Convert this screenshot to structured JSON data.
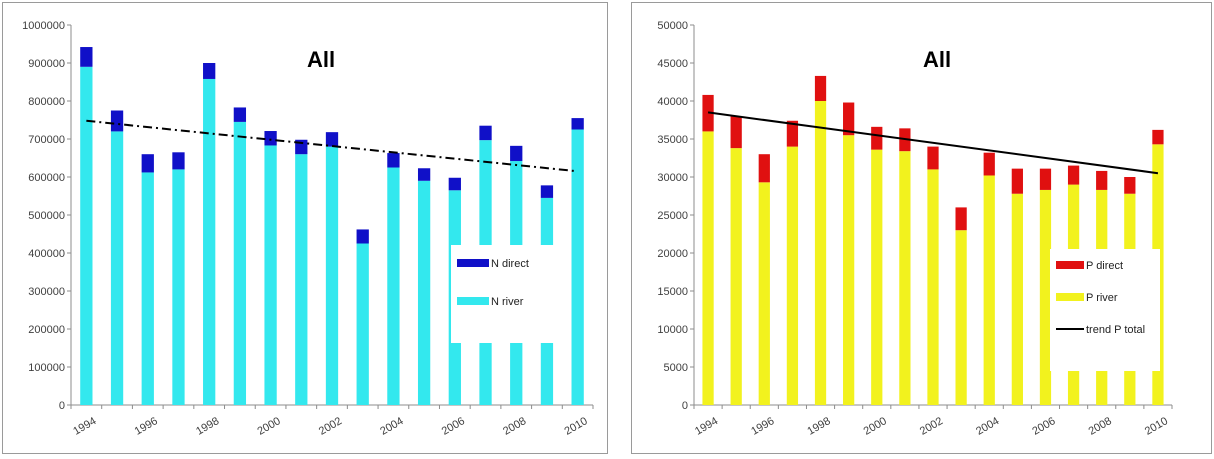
{
  "chart_data": [
    {
      "type": "bar",
      "stacked": true,
      "title": "All",
      "xlabel": "",
      "ylabel": "",
      "categories": [
        "1994",
        "1995",
        "1996",
        "1997",
        "1998",
        "1999",
        "2000",
        "2001",
        "2002",
        "2003",
        "2004",
        "2005",
        "2006",
        "2007",
        "2008",
        "2009",
        "2010"
      ],
      "x_tick_labels": [
        "1994",
        "1996",
        "1998",
        "2000",
        "2002",
        "2004",
        "2006",
        "2008",
        "2010"
      ],
      "ylim": [
        0,
        1000000
      ],
      "y_ticks": [
        "0",
        "100000",
        "200000",
        "300000",
        "400000",
        "500000",
        "600000",
        "700000",
        "800000",
        "900000",
        "1000000"
      ],
      "grid": false,
      "legend_position": "right",
      "series": [
        {
          "name": "N river",
          "color": "#33e8ee",
          "values": [
            890000,
            720000,
            612000,
            620000,
            858000,
            745000,
            683000,
            660000,
            680000,
            425000,
            625000,
            590000,
            565000,
            697000,
            642000,
            545000,
            725000
          ]
        },
        {
          "name": "N direct",
          "color": "#1010c8",
          "values": [
            52000,
            55000,
            48000,
            45000,
            42000,
            38000,
            38000,
            38000,
            38000,
            37000,
            38000,
            33000,
            33000,
            38000,
            40000,
            33000,
            30000
          ]
        }
      ],
      "trend": {
        "name": "",
        "style": "dash-dot",
        "color": "#000000",
        "start": [
          1994,
          748000
        ],
        "end": [
          2010,
          615000
        ]
      }
    },
    {
      "type": "bar",
      "stacked": true,
      "title": "All",
      "xlabel": "",
      "ylabel": "",
      "categories": [
        "1994",
        "1995",
        "1996",
        "1997",
        "1998",
        "1999",
        "2000",
        "2001",
        "2002",
        "2003",
        "2004",
        "2005",
        "2006",
        "2007",
        "2008",
        "2009",
        "2010"
      ],
      "x_tick_labels": [
        "1994",
        "1996",
        "1998",
        "2000",
        "2002",
        "2004",
        "2006",
        "2008",
        "2010"
      ],
      "ylim": [
        0,
        50000
      ],
      "y_ticks": [
        "0",
        "5000",
        "10000",
        "15000",
        "20000",
        "25000",
        "30000",
        "35000",
        "40000",
        "45000",
        "50000"
      ],
      "grid": false,
      "legend_position": "right",
      "series": [
        {
          "name": "P river",
          "color": "#f2f21e",
          "values": [
            36000,
            33800,
            29300,
            34000,
            40000,
            35500,
            33600,
            33400,
            31000,
            23000,
            30200,
            27800,
            28300,
            29000,
            28300,
            27800,
            34300
          ]
        },
        {
          "name": "P direct",
          "color": "#e01010",
          "values": [
            4800,
            4200,
            3700,
            3400,
            3300,
            4300,
            3000,
            3000,
            3000,
            3000,
            3000,
            3300,
            2800,
            2500,
            2500,
            2200,
            1900
          ]
        }
      ],
      "trend": {
        "name": "trend P total",
        "style": "solid",
        "color": "#000000",
        "start": [
          1994,
          38500
        ],
        "end": [
          2010,
          30500
        ]
      }
    }
  ]
}
